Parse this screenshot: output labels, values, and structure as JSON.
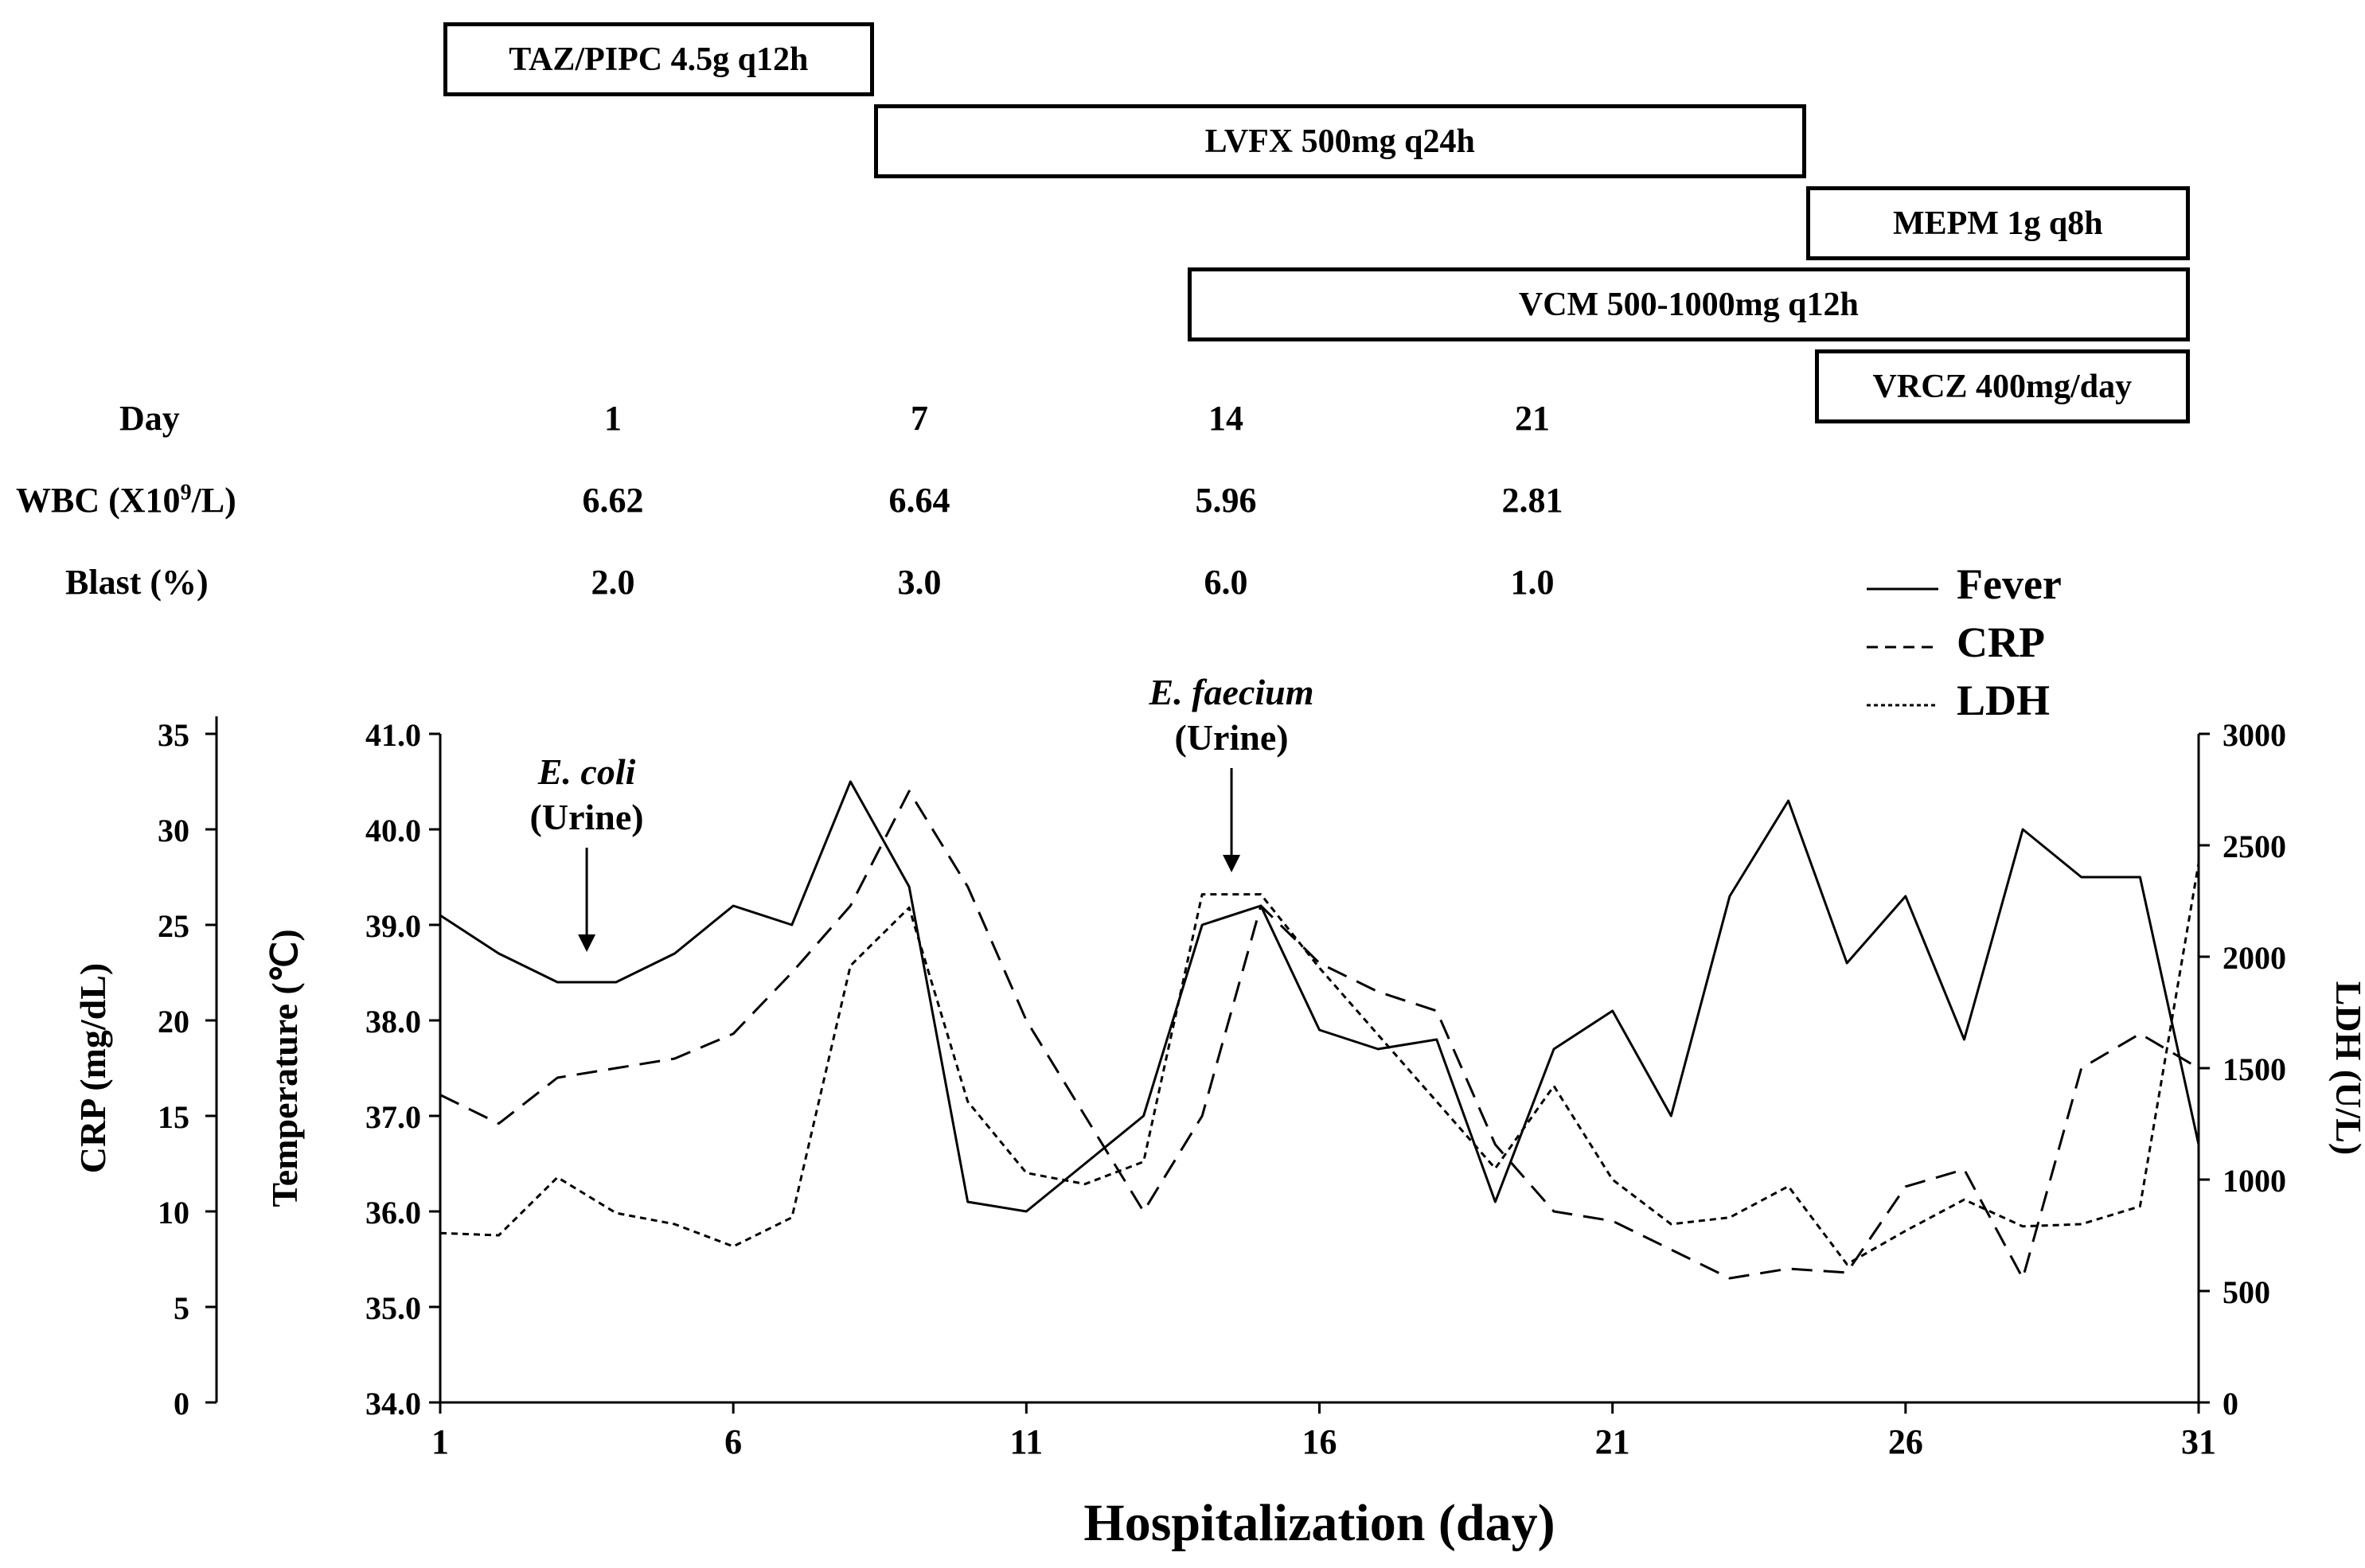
{
  "drugs": [
    {
      "label": "TAZ/PIPC 4.5g q12h",
      "start_day": 1.05,
      "end_day": 8.4,
      "row": 0
    },
    {
      "label": "LVFX 500mg q24h",
      "start_day": 8.4,
      "end_day": 24.3,
      "row": 1
    },
    {
      "label": "MEPM 1g q8h",
      "start_day": 24.3,
      "end_day": 30.85,
      "row": 2
    },
    {
      "label": "VCM 500-1000mg q12h",
      "start_day": 13.75,
      "end_day": 30.85,
      "row": 3
    },
    {
      "label": "VRCZ 400mg/day",
      "start_day": 24.45,
      "end_day": 30.85,
      "row": 4
    }
  ],
  "table": {
    "day_label": "Day",
    "wbc_label": "WBC (X10",
    "wbc_sup": "9",
    "wbc_unit": "/L)",
    "blast_label": "Blast (%)",
    "days": [
      "1",
      "7",
      "14",
      "21"
    ],
    "wbc": [
      "6.62",
      "6.64",
      "5.96",
      "2.81"
    ],
    "blast": [
      "2.0",
      "3.0",
      "6.0",
      "1.0"
    ]
  },
  "legend": {
    "fever": "Fever",
    "crp": "CRP",
    "ldh": "LDH"
  },
  "annotations": [
    {
      "organism": "E. coli",
      "source": "(Urine)",
      "day": 3.5
    },
    {
      "organism": "E. faecium",
      "source": "(Urine)",
      "day": 14.5
    }
  ],
  "chart_data": {
    "type": "line",
    "title": "",
    "xlabel": "Hospitalization (day)",
    "x": [
      1,
      2,
      3,
      4,
      5,
      6,
      7,
      8,
      9,
      10,
      11,
      12,
      13,
      14,
      15,
      16,
      17,
      18,
      19,
      20,
      21,
      22,
      23,
      24,
      25,
      26,
      27,
      28,
      29,
      30,
      31
    ],
    "xticks": [
      1,
      6,
      11,
      16,
      21,
      26,
      31
    ],
    "xlim": [
      1,
      31
    ],
    "axes": {
      "temperature": {
        "label": "Temperature (℃)",
        "range": [
          34.0,
          41.0
        ],
        "ticks": [
          "34.0",
          "35.0",
          "36.0",
          "37.0",
          "38.0",
          "39.0",
          "40.0",
          "41.0"
        ]
      },
      "crp": {
        "label": "CRP (mg/dL)",
        "range": [
          0,
          35
        ],
        "ticks": [
          "0",
          "5",
          "10",
          "15",
          "20",
          "25",
          "30",
          "35"
        ]
      },
      "ldh": {
        "label": "LDH (U/L)",
        "range": [
          0,
          3000
        ],
        "ticks": [
          "0",
          "500",
          "1000",
          "1500",
          "2000",
          "2500",
          "3000"
        ]
      }
    },
    "series": [
      {
        "name": "Fever",
        "axis": "temperature",
        "style": "solid",
        "values": [
          39.1,
          38.7,
          38.4,
          38.4,
          38.7,
          39.2,
          39.0,
          40.5,
          39.4,
          36.1,
          36.0,
          36.5,
          37.0,
          39.0,
          39.2,
          37.9,
          37.7,
          37.8,
          36.1,
          37.7,
          38.1,
          37.0,
          39.3,
          40.3,
          38.6,
          39.3,
          37.8,
          40.0,
          39.5,
          39.5,
          36.7
        ]
      },
      {
        "name": "CRP",
        "axis": "crp",
        "style": "dashed",
        "values": [
          16.1,
          14.6,
          17.0,
          17.5,
          18.0,
          19.3,
          22.5,
          26.0,
          32.0,
          27.0,
          20.0,
          15.0,
          10.0,
          15.0,
          26.0,
          23.0,
          21.5,
          20.5,
          13.5,
          10.0,
          9.5,
          8.0,
          6.5,
          7.0,
          6.8,
          11.3,
          12.2,
          6.5,
          17.5,
          19.3,
          17.5
        ]
      },
      {
        "name": "LDH",
        "axis": "ldh",
        "style": "dotted",
        "values": [
          760,
          750,
          1010,
          850,
          800,
          700,
          830,
          1960,
          2220,
          1350,
          1030,
          980,
          1080,
          2280,
          2280,
          1950,
          1650,
          1350,
          1050,
          1420,
          1000,
          800,
          830,
          970,
          620,
          770,
          910,
          790,
          800,
          880,
          2420
        ]
      }
    ]
  }
}
